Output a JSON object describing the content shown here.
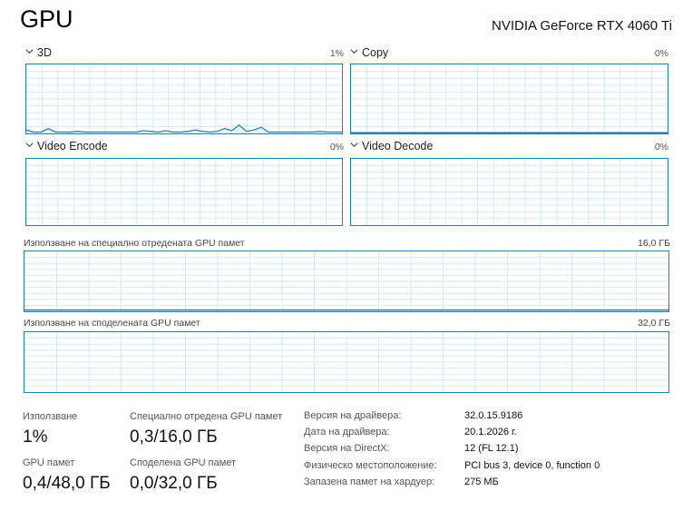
{
  "header": {
    "title": "GPU",
    "device": "NVIDIA GeForce RTX 4060 Ti"
  },
  "engines": [
    {
      "label": "3D",
      "percent": "1%"
    },
    {
      "label": "Copy",
      "percent": "0%"
    },
    {
      "label": "Video Encode",
      "percent": "0%"
    },
    {
      "label": "Video Decode",
      "percent": "0%"
    }
  ],
  "engine_3d_history": [
    0.05,
    0.02,
    0.02,
    0.07,
    0.02,
    0.02,
    0.02,
    0.03,
    0.02,
    0.02,
    0.02,
    0.02,
    0.02,
    0.02,
    0.02,
    0.02,
    0.04,
    0.03,
    0.02,
    0.04,
    0.02,
    0.02,
    0.03,
    0.05,
    0.03,
    0.02,
    0.03,
    0.07,
    0.04,
    0.12,
    0.03,
    0.05,
    0.09,
    0.02,
    0.02,
    0.02,
    0.02,
    0.02,
    0.02,
    0.02,
    0.03,
    0.02,
    0.02,
    0.02
  ],
  "memory": {
    "dedicated": {
      "label": "Използване на специално отредената GPU памет",
      "max": "16,0 ГБ"
    },
    "shared": {
      "label": "Използване на споделената GPU памет",
      "max": "32,0 ГБ"
    }
  },
  "stats": {
    "utilization": {
      "label": "Използване",
      "value": "1%"
    },
    "dedicated": {
      "label": "Специално отредена GPU памет",
      "value": "0,3/16,0 ГБ"
    },
    "gpu_memory": {
      "label": "GPU памет",
      "value": "0,4/48,0 ГБ"
    },
    "shared": {
      "label": "Споделена GPU памет",
      "value": "0,0/32,0 ГБ"
    }
  },
  "info": [
    {
      "key": "Версия на драйвера:",
      "value": "32.0.15.9186"
    },
    {
      "key": "Дата на драйвера:",
      "value": "20.1.2026 г."
    },
    {
      "key": "Версия на DirectX:",
      "value": "12 (FL 12.1)"
    },
    {
      "key": "Физическо местоположение:",
      "value": "PCI bus 3, device 0, function 0"
    },
    {
      "key": "Запазена памет на хардуер:",
      "value": "275 МБ"
    }
  ],
  "colors": {
    "border": "#1f7fb0",
    "grid": "#d6ebf5",
    "line": "#1f7fb0",
    "fill": "#e6f2f9"
  }
}
